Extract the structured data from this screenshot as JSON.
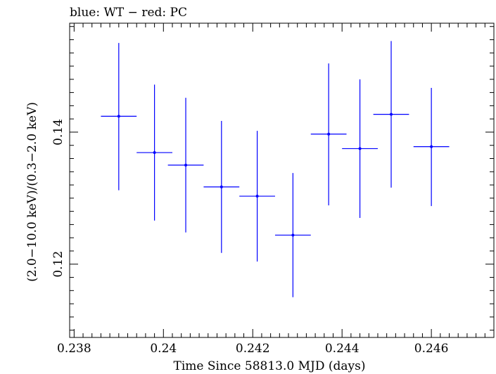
{
  "chart_data": {
    "type": "scatter",
    "title": "blue: WT − red: PC",
    "xlabel": "Time Since 58813.0 MJD (days)",
    "ylabel": "(2.0−10.0 keV)/(0.3−2.0 keV)",
    "xlim": [
      0.2379,
      0.2474
    ],
    "ylim": [
      0.1089,
      0.1565
    ],
    "x_ticks": [
      0.238,
      0.24,
      0.242,
      0.244,
      0.246
    ],
    "x_tick_labels": [
      "0.238",
      "0.24",
      "0.242",
      "0.244",
      "0.246"
    ],
    "y_ticks": [
      0.12,
      0.14
    ],
    "y_tick_labels": [
      "0.12",
      "0.14"
    ],
    "grid": false,
    "series": [
      {
        "color": "#0000ff",
        "points": [
          {
            "x": 0.239,
            "y": 0.1424,
            "xerr": 0.0004,
            "yerr_low": 0.0112,
            "yerr_high": 0.0111
          },
          {
            "x": 0.2398,
            "y": 0.1369,
            "xerr": 0.0004,
            "yerr_low": 0.0103,
            "yerr_high": 0.0103
          },
          {
            "x": 0.2405,
            "y": 0.135,
            "xerr": 0.0004,
            "yerr_low": 0.0102,
            "yerr_high": 0.0102
          },
          {
            "x": 0.2413,
            "y": 0.1317,
            "xerr": 0.0004,
            "yerr_low": 0.01,
            "yerr_high": 0.01
          },
          {
            "x": 0.2421,
            "y": 0.1303,
            "xerr": 0.0004,
            "yerr_low": 0.0099,
            "yerr_high": 0.0099
          },
          {
            "x": 0.2429,
            "y": 0.1244,
            "xerr": 0.0004,
            "yerr_low": 0.0094,
            "yerr_high": 0.0094
          },
          {
            "x": 0.2437,
            "y": 0.1397,
            "xerr": 0.0004,
            "yerr_low": 0.0108,
            "yerr_high": 0.0107
          },
          {
            "x": 0.2444,
            "y": 0.1375,
            "xerr": 0.0004,
            "yerr_low": 0.0105,
            "yerr_high": 0.0105
          },
          {
            "x": 0.2451,
            "y": 0.1427,
            "xerr": 0.0004,
            "yerr_low": 0.0111,
            "yerr_high": 0.0111
          },
          {
            "x": 0.246,
            "y": 0.1378,
            "xerr": 0.0004,
            "yerr_low": 0.009,
            "yerr_high": 0.0089
          }
        ]
      }
    ]
  }
}
